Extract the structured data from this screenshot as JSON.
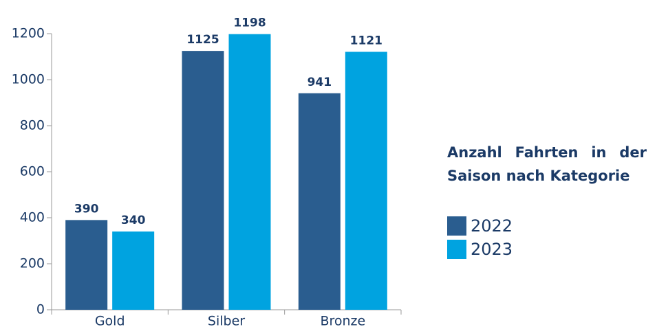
{
  "chart_data": {
    "type": "bar",
    "title": "Anzahl Fahrten in der Saison nach Kategorie",
    "categories": [
      "Gold",
      "Silber",
      "Bronze"
    ],
    "series": [
      {
        "name": "2022",
        "color": "#2a5d8f",
        "values": [
          390,
          1125,
          941
        ]
      },
      {
        "name": "2023",
        "color": "#00a3e0",
        "values": [
          340,
          1198,
          1121
        ]
      }
    ],
    "ylim": [
      0,
      1200
    ],
    "yticks": [
      0,
      200,
      400,
      600,
      800,
      1000,
      1200
    ],
    "grid": false,
    "legend": "right"
  }
}
